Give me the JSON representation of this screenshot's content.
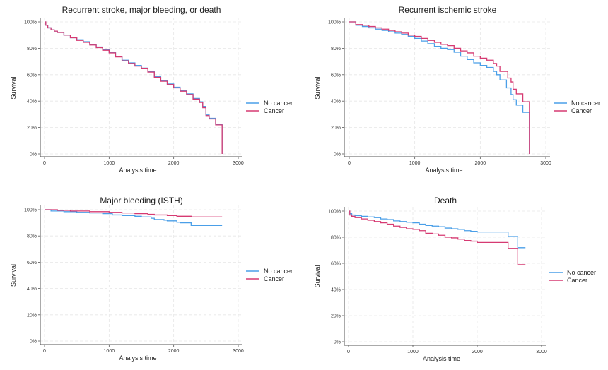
{
  "colors": {
    "no_cancer": "#4a9fe8",
    "cancer": "#d63a72"
  },
  "chart_data": [
    {
      "type": "line",
      "step": true,
      "title": "Recurrent stroke, major bleeding, or death",
      "xlabel": "Analysis time",
      "ylabel": "Survival",
      "xlim": [
        0,
        3000
      ],
      "ylim": [
        0,
        1
      ],
      "xticks": [
        0,
        1000,
        2000,
        3000
      ],
      "xtick_labels": [
        "0",
        "1000",
        "2000",
        "3000"
      ],
      "yticks": [
        0,
        0.2,
        0.4,
        0.6,
        0.8,
        1.0
      ],
      "ytick_labels": [
        "0%",
        "20%",
        "40%",
        "60%",
        "80%",
        "100%"
      ],
      "grid": true,
      "legend": {
        "position": "right",
        "entries": [
          "No cancer",
          "Cancer"
        ]
      },
      "series": [
        {
          "name": "No cancer",
          "x": [
            0,
            20,
            50,
            100,
            150,
            200,
            300,
            400,
            500,
            600,
            700,
            800,
            900,
            1000,
            1100,
            1200,
            1300,
            1400,
            1500,
            1600,
            1700,
            1800,
            1900,
            2000,
            2100,
            2200,
            2300,
            2400,
            2450,
            2500,
            2550,
            2650,
            2750,
            2750
          ],
          "y": [
            1.0,
            0.975,
            0.955,
            0.94,
            0.93,
            0.92,
            0.9,
            0.88,
            0.865,
            0.85,
            0.83,
            0.81,
            0.79,
            0.77,
            0.74,
            0.71,
            0.69,
            0.67,
            0.65,
            0.625,
            0.585,
            0.555,
            0.53,
            0.505,
            0.48,
            0.455,
            0.42,
            0.395,
            0.36,
            0.295,
            0.27,
            0.225,
            0.225,
            0.0
          ]
        },
        {
          "name": "Cancer",
          "x": [
            0,
            20,
            50,
            100,
            150,
            200,
            300,
            400,
            500,
            600,
            700,
            800,
            900,
            1000,
            1100,
            1200,
            1300,
            1400,
            1500,
            1600,
            1700,
            1800,
            1900,
            2000,
            2100,
            2200,
            2300,
            2400,
            2450,
            2500,
            2550,
            2650,
            2750,
            2750
          ],
          "y": [
            1.0,
            0.975,
            0.955,
            0.94,
            0.93,
            0.92,
            0.9,
            0.88,
            0.86,
            0.845,
            0.825,
            0.805,
            0.785,
            0.765,
            0.735,
            0.705,
            0.685,
            0.665,
            0.645,
            0.62,
            0.58,
            0.55,
            0.525,
            0.5,
            0.475,
            0.45,
            0.415,
            0.39,
            0.35,
            0.29,
            0.265,
            0.22,
            0.22,
            0.0
          ]
        }
      ]
    },
    {
      "type": "line",
      "step": true,
      "title": "Recurrent ischemic stroke",
      "xlabel": "Analysis time",
      "ylabel": "Survival",
      "xlim": [
        0,
        3000
      ],
      "ylim": [
        0,
        1
      ],
      "xticks": [
        0,
        1000,
        2000,
        3000
      ],
      "xtick_labels": [
        "0",
        "1000",
        "2000",
        "3000"
      ],
      "yticks": [
        0,
        0.2,
        0.4,
        0.6,
        0.8,
        1.0
      ],
      "ytick_labels": [
        "0%",
        "20%",
        "40%",
        "60%",
        "80%",
        "100%"
      ],
      "grid": true,
      "legend": {
        "position": "right",
        "entries": [
          "No cancer",
          "Cancer"
        ]
      },
      "series": [
        {
          "name": "No cancer",
          "x": [
            0,
            100,
            200,
            300,
            400,
            500,
            600,
            700,
            800,
            900,
            1000,
            1100,
            1200,
            1300,
            1400,
            1500,
            1600,
            1700,
            1800,
            1900,
            2000,
            2100,
            2200,
            2250,
            2300,
            2400,
            2470,
            2500,
            2550,
            2650,
            2750,
            2750
          ],
          "y": [
            1.0,
            0.975,
            0.965,
            0.955,
            0.945,
            0.935,
            0.925,
            0.915,
            0.905,
            0.89,
            0.875,
            0.855,
            0.835,
            0.815,
            0.8,
            0.79,
            0.77,
            0.74,
            0.715,
            0.69,
            0.67,
            0.655,
            0.625,
            0.6,
            0.56,
            0.5,
            0.45,
            0.41,
            0.37,
            0.315,
            0.315,
            0.0
          ]
        },
        {
          "name": "Cancer",
          "x": [
            0,
            100,
            200,
            300,
            400,
            500,
            600,
            700,
            800,
            900,
            1000,
            1100,
            1200,
            1300,
            1400,
            1500,
            1600,
            1700,
            1800,
            1900,
            2000,
            2100,
            2200,
            2250,
            2300,
            2420,
            2470,
            2500,
            2550,
            2650,
            2750,
            2750
          ],
          "y": [
            1.0,
            0.98,
            0.975,
            0.965,
            0.955,
            0.945,
            0.935,
            0.925,
            0.915,
            0.9,
            0.89,
            0.875,
            0.86,
            0.845,
            0.83,
            0.82,
            0.8,
            0.78,
            0.765,
            0.74,
            0.725,
            0.71,
            0.685,
            0.665,
            0.625,
            0.575,
            0.545,
            0.49,
            0.455,
            0.395,
            0.395,
            0.0
          ]
        }
      ]
    },
    {
      "type": "line",
      "step": true,
      "title": "Major bleeding (ISTH)",
      "xlabel": "Analysis time",
      "ylabel": "Survival",
      "xlim": [
        0,
        3000
      ],
      "ylim": [
        0,
        1
      ],
      "xticks": [
        0,
        1000,
        2000,
        3000
      ],
      "xtick_labels": [
        "0",
        "1000",
        "2000",
        "3000"
      ],
      "yticks": [
        0,
        0.2,
        0.4,
        0.6,
        0.8,
        1.0
      ],
      "ytick_labels": [
        "0%",
        "20%",
        "40%",
        "60%",
        "80%",
        "100%"
      ],
      "grid": true,
      "legend": {
        "position": "right",
        "entries": [
          "No cancer",
          "Cancer"
        ]
      },
      "series": [
        {
          "name": "No cancer",
          "x": [
            0,
            100,
            300,
            500,
            700,
            900,
            1050,
            1200,
            1400,
            1500,
            1650,
            1700,
            1850,
            1900,
            2050,
            2100,
            2270,
            2750
          ],
          "y": [
            1.0,
            0.99,
            0.985,
            0.98,
            0.975,
            0.97,
            0.96,
            0.955,
            0.95,
            0.945,
            0.935,
            0.925,
            0.92,
            0.915,
            0.905,
            0.9,
            0.88,
            0.88
          ]
        },
        {
          "name": "Cancer",
          "x": [
            0,
            200,
            400,
            700,
            1000,
            1200,
            1400,
            1600,
            1700,
            1900,
            2050,
            2270,
            2750
          ],
          "y": [
            1.0,
            0.995,
            0.99,
            0.985,
            0.98,
            0.975,
            0.97,
            0.965,
            0.96,
            0.955,
            0.95,
            0.945,
            0.945
          ]
        }
      ]
    },
    {
      "type": "line",
      "step": true,
      "title": "Death",
      "xlabel": "Analysis time",
      "ylabel": "Survival",
      "xlim": [
        0,
        3000
      ],
      "ylim": [
        0,
        1
      ],
      "xticks": [
        0,
        1000,
        2000,
        3000
      ],
      "xtick_labels": [
        "0",
        "1000",
        "2000",
        "3000"
      ],
      "yticks": [
        0,
        0.2,
        0.4,
        0.6,
        0.8,
        1.0
      ],
      "ytick_labels": [
        "0%",
        "20%",
        "40%",
        "60%",
        "80%",
        "100%"
      ],
      "grid": true,
      "legend": {
        "position": "right",
        "entries": [
          "No cancer",
          "Cancer"
        ]
      },
      "series": [
        {
          "name": "No cancer",
          "x": [
            0,
            20,
            50,
            100,
            200,
            300,
            400,
            500,
            600,
            700,
            800,
            900,
            1000,
            1100,
            1200,
            1300,
            1400,
            1500,
            1600,
            1700,
            1800,
            1900,
            2000,
            2480,
            2630,
            2750
          ],
          "y": [
            1.0,
            0.98,
            0.97,
            0.965,
            0.96,
            0.955,
            0.95,
            0.94,
            0.935,
            0.925,
            0.92,
            0.915,
            0.91,
            0.9,
            0.89,
            0.885,
            0.88,
            0.87,
            0.865,
            0.86,
            0.85,
            0.845,
            0.84,
            0.805,
            0.72,
            0.72
          ]
        },
        {
          "name": "Cancer",
          "x": [
            0,
            20,
            50,
            100,
            200,
            300,
            400,
            500,
            600,
            700,
            800,
            900,
            1000,
            1100,
            1200,
            1300,
            1400,
            1500,
            1600,
            1700,
            1800,
            1900,
            2000,
            2480,
            2630,
            2750
          ],
          "y": [
            1.0,
            0.97,
            0.96,
            0.95,
            0.94,
            0.93,
            0.92,
            0.91,
            0.9,
            0.885,
            0.875,
            0.865,
            0.86,
            0.85,
            0.83,
            0.825,
            0.815,
            0.8,
            0.795,
            0.785,
            0.775,
            0.77,
            0.76,
            0.715,
            0.59,
            0.59
          ]
        }
      ]
    }
  ]
}
